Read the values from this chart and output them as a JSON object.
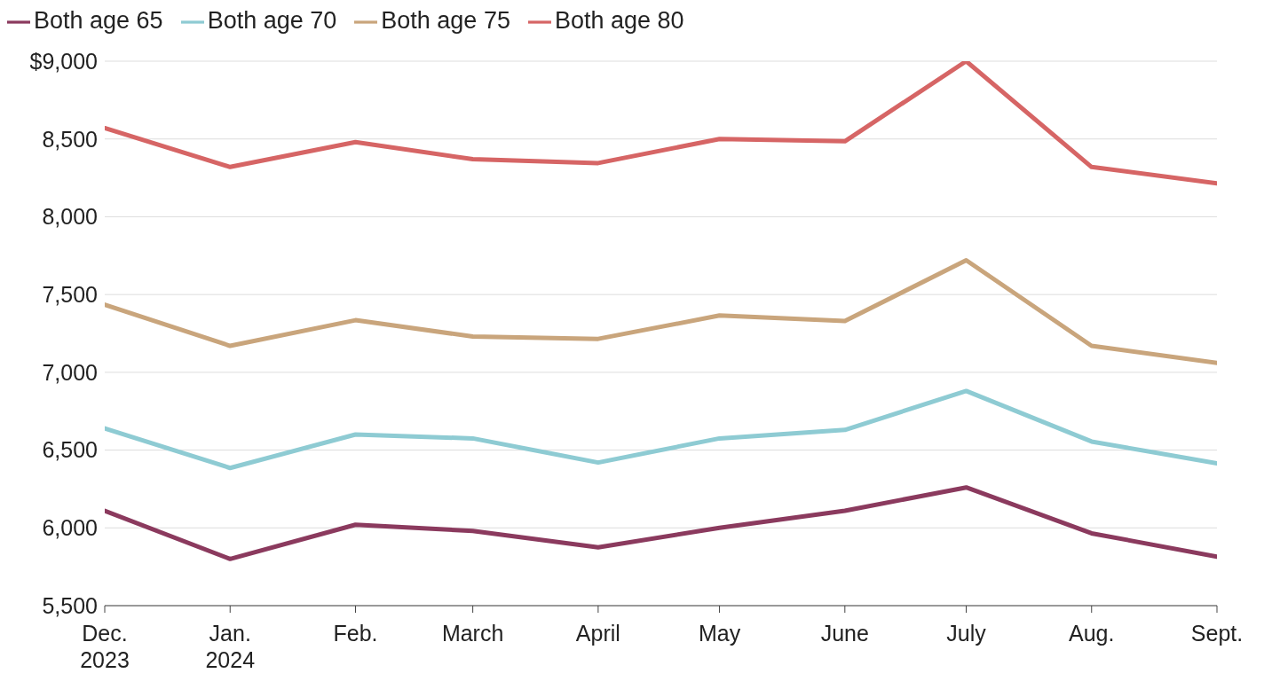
{
  "chart_data": {
    "type": "line",
    "x": [
      "2023-12",
      "2024-01",
      "2024-02",
      "2024-03",
      "2024-04",
      "2024-05",
      "2024-06",
      "2024-07",
      "2024-08",
      "2024-09"
    ],
    "series": [
      {
        "name": "Both age 65",
        "color": "#8b3a5e",
        "values": [
          6110,
          5800,
          6020,
          5980,
          5875,
          6000,
          6110,
          6260,
          5965,
          5815
        ]
      },
      {
        "name": "Both age 70",
        "color": "#8ecbd3",
        "values": [
          6640,
          6385,
          6600,
          6575,
          6420,
          6575,
          6630,
          6880,
          6555,
          6415
        ]
      },
      {
        "name": "Both age 75",
        "color": "#c9a57c",
        "values": [
          7435,
          7170,
          7335,
          7230,
          7215,
          7365,
          7330,
          7720,
          7170,
          7060
        ]
      },
      {
        "name": "Both age 80",
        "color": "#d66565",
        "values": [
          8570,
          8320,
          8480,
          8370,
          8345,
          8500,
          8485,
          9000,
          8320,
          8215
        ]
      }
    ],
    "xlim": [
      "2023-12",
      "2024-09"
    ],
    "xticks": [
      {
        "value": "2023-12",
        "label": "Dec.\n2023"
      },
      {
        "value": "2024-01",
        "label": "Jan.\n2024"
      },
      {
        "value": "2024-02",
        "label": "Feb."
      },
      {
        "value": "2024-03",
        "label": "March"
      },
      {
        "value": "2024-04",
        "label": "April"
      },
      {
        "value": "2024-05",
        "label": "May"
      },
      {
        "value": "2024-06",
        "label": "June"
      },
      {
        "value": "2024-07",
        "label": "July"
      },
      {
        "value": "2024-08",
        "label": "Aug."
      },
      {
        "value": "2024-09",
        "label": "Sept."
      }
    ],
    "ylim": [
      5500,
      9000
    ],
    "yticks": [
      {
        "value": 5500,
        "label": "5,500"
      },
      {
        "value": 6000,
        "label": "6,000"
      },
      {
        "value": 6500,
        "label": "6,500"
      },
      {
        "value": 7000,
        "label": "7,000"
      },
      {
        "value": 7500,
        "label": "7,500"
      },
      {
        "value": 8000,
        "label": "8,000"
      },
      {
        "value": 8500,
        "label": "8,500"
      },
      {
        "value": 9000,
        "label": "$9,000"
      }
    ],
    "grid": "y",
    "legend": "top left",
    "marker": "none",
    "line_style": "solid"
  }
}
